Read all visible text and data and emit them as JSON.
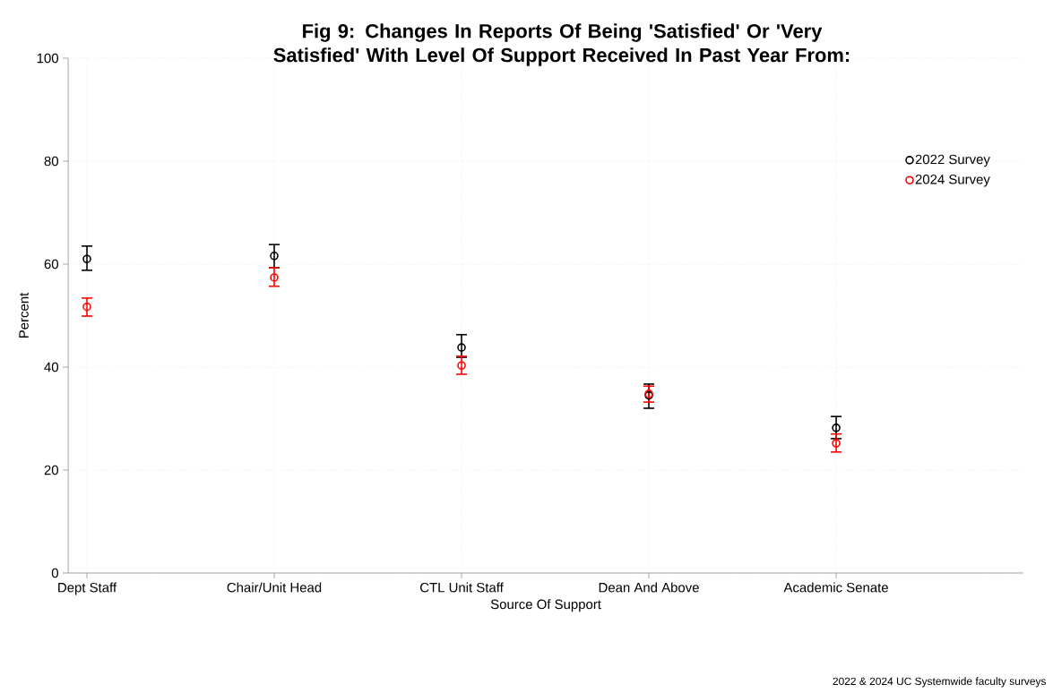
{
  "chart_data": {
    "type": "scatter",
    "title": "Fig 9: Changes In Reports Of Being 'Satisfied' Or 'Very Satisfied' With Level Of Support Received In Past Year From:",
    "xlabel": "Source Of Support",
    "ylabel": "Percent",
    "categories": [
      "Dept Staff",
      "Chair/Unit Head",
      "CTL Unit Staff",
      "Dean And Above",
      "Academic Senate"
    ],
    "series": [
      {
        "name": "2022 Survey",
        "color": "#000000",
        "values": [
          61.0,
          61.6,
          43.8,
          34.5,
          28.2
        ],
        "errors": [
          [
            58.8,
            63.5
          ],
          [
            59.3,
            63.8
          ],
          [
            41.9,
            46.3
          ],
          [
            32.0,
            36.7
          ],
          [
            26.1,
            30.4
          ]
        ]
      },
      {
        "name": "2024 Survey",
        "color": "#ff0000",
        "values": [
          51.7,
          57.4,
          40.3,
          34.8,
          25.2
        ],
        "errors": [
          [
            49.9,
            53.4
          ],
          [
            55.7,
            59.3
          ],
          [
            38.6,
            42.1
          ],
          [
            33.2,
            36.3
          ],
          [
            23.5,
            27.0
          ]
        ]
      }
    ],
    "ylim": [
      0,
      100
    ],
    "yticks": [
      0,
      20,
      40,
      60,
      80,
      100
    ],
    "grid": true,
    "legend": "top right",
    "marker": "circle",
    "annotations": [
      "2022 & 2024 UC Systemwide faculty surveys"
    ]
  }
}
